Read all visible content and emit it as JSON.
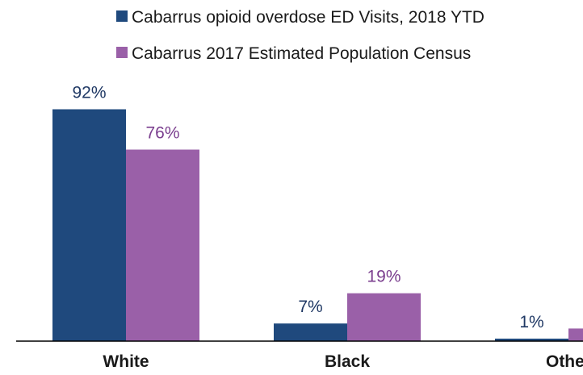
{
  "chart_data": {
    "type": "bar",
    "categories": [
      "White",
      "Black",
      "Other"
    ],
    "series": [
      {
        "name": "Cabarrus opioid overdose ED Visits, 2018 YTD",
        "values": [
          92,
          7,
          1
        ],
        "labels": [
          "92%",
          "7%",
          "1%"
        ],
        "color": "#1f497d"
      },
      {
        "name": "Cabarrus 2017 Estimated Population Census",
        "values": [
          76,
          19,
          5
        ],
        "labels": [
          "76%",
          "19%",
          ""
        ],
        "color": "#9a60a8"
      }
    ],
    "title": "",
    "xlabel": "",
    "ylabel": "",
    "ylim": [
      0,
      100
    ],
    "grid": false,
    "legend": "top"
  }
}
